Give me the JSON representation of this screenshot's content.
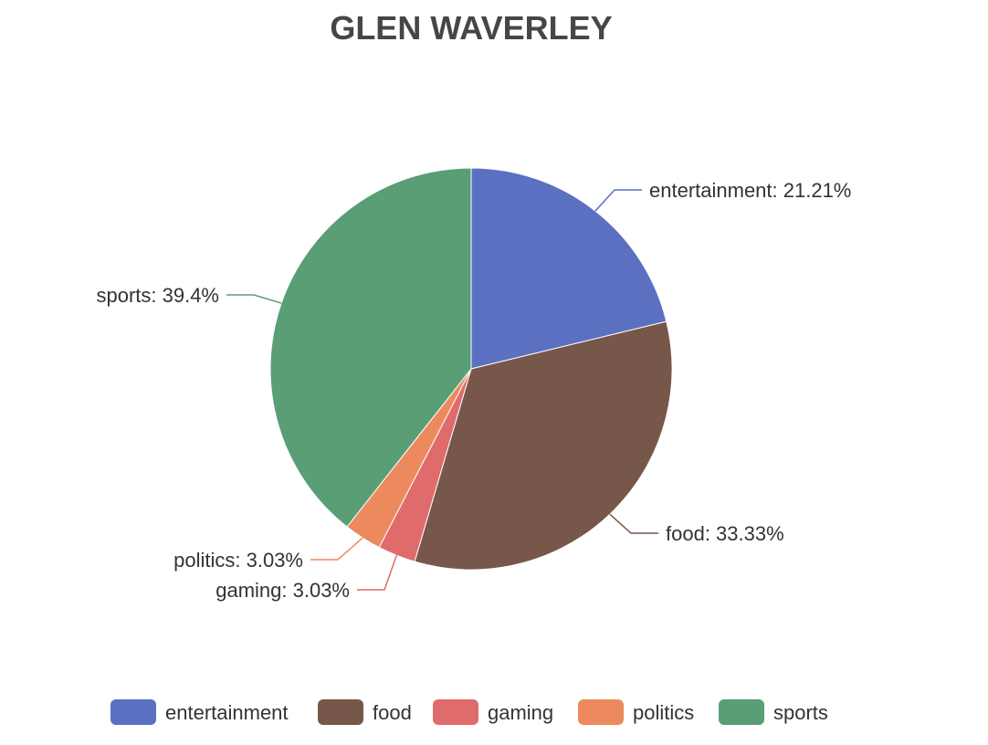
{
  "chart_data": {
    "type": "pie",
    "title": "GLEN WAVERLEY",
    "categories": [
      "entertainment",
      "food",
      "gaming",
      "politics",
      "sports"
    ],
    "values": [
      21.21,
      33.33,
      3.03,
      3.03,
      39.4
    ],
    "labels": [
      "entertainment: 21.21%",
      "food: 33.33%",
      "gaming: 3.03%",
      "politics: 3.03%",
      "sports: 39.4%"
    ],
    "colors": [
      "#5b70c0",
      "#77574a",
      "#e06b6b",
      "#ed8a5d",
      "#5a9e75"
    ],
    "legend_position": "bottom"
  }
}
